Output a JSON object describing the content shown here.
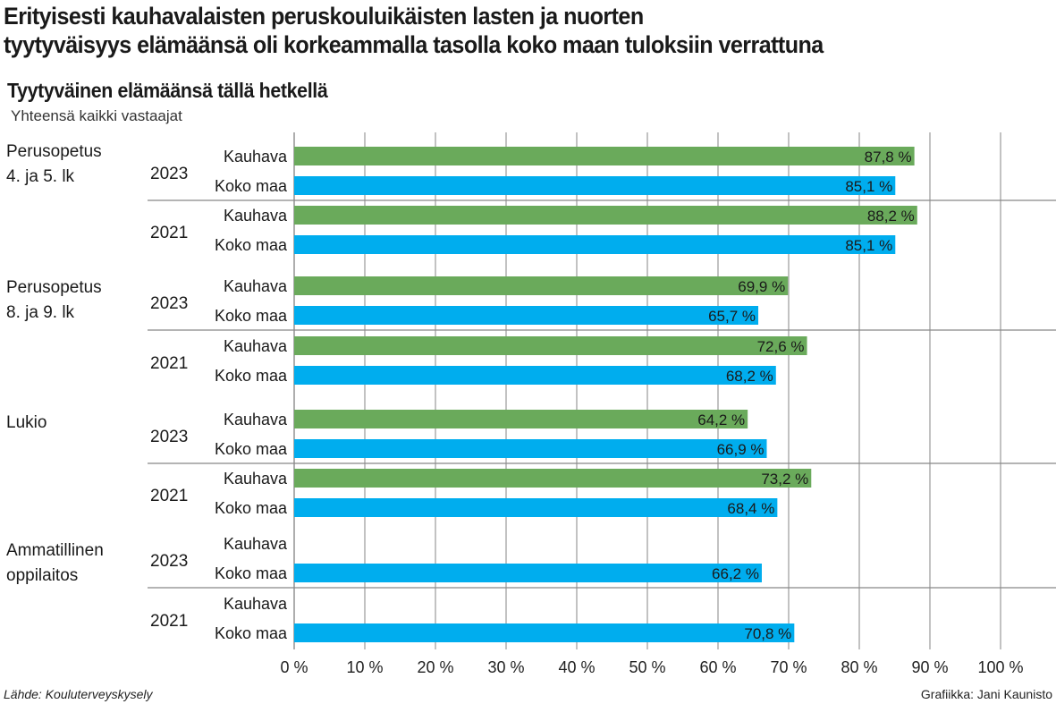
{
  "title": "Erityisesti kauhavalaisten peruskouluikäisten lasten ja nuorten tyytyväisyys elämäänsä oli korkeammalla tasolla koko maan tuloksiin verrattuna",
  "title_lines": [
    "Erityisesti kauhavalaisten peruskouluikäisten lasten ja nuorten",
    "tyytyväisyys elämäänsä oli korkeammalla tasolla koko maan tuloksiin verrattuna"
  ],
  "source": "Lähde: Kouluterveyskysely",
  "credit": "Grafiikka: Jani Kaunisto",
  "colors": {
    "Kauhava": "#6aaa5b",
    "Koko maa": "#00adee"
  },
  "chart_data": {
    "type": "bar",
    "orientation": "horizontal",
    "title": "Tyytyväinen elämäänsä tällä hetkellä",
    "subtitle": "Yhteensä kaikki vastaajat",
    "xlim": [
      0,
      100
    ],
    "x_ticks": [
      "0 %",
      "10 %",
      "20 %",
      "30 %",
      "40 %",
      "50 %",
      "60 %",
      "70 %",
      "80 %",
      "90 %",
      "100 %"
    ],
    "grid": true,
    "series_names": [
      "Kauhava",
      "Koko maa"
    ],
    "groups": [
      {
        "label": [
          "Perusopetus",
          "4. ja 5. lk"
        ],
        "years": [
          {
            "year": "2023",
            "values": [
              87.8,
              85.1
            ],
            "labels": [
              "87,8 %",
              "85,1 %"
            ]
          },
          {
            "year": "2021",
            "values": [
              88.2,
              85.1
            ],
            "labels": [
              "88,2 %",
              "85,1 %"
            ]
          }
        ]
      },
      {
        "label": [
          "Perusopetus",
          "8. ja 9. lk"
        ],
        "years": [
          {
            "year": "2023",
            "values": [
              69.9,
              65.7
            ],
            "labels": [
              "69,9 %",
              "65,7 %"
            ]
          },
          {
            "year": "2021",
            "values": [
              72.6,
              68.2
            ],
            "labels": [
              "72,6 %",
              "68,2 %"
            ]
          }
        ]
      },
      {
        "label": [
          "Lukio"
        ],
        "years": [
          {
            "year": "2023",
            "values": [
              64.2,
              66.9
            ],
            "labels": [
              "64,2 %",
              "66,9 %"
            ]
          },
          {
            "year": "2021",
            "values": [
              73.2,
              68.4
            ],
            "labels": [
              "73,2 %",
              "68,4 %"
            ]
          }
        ]
      },
      {
        "label": [
          "Ammatillinen",
          "oppilaitos"
        ],
        "years": [
          {
            "year": "2023",
            "values": [
              null,
              66.2
            ],
            "labels": [
              null,
              "66,2 %"
            ]
          },
          {
            "year": "2021",
            "values": [
              null,
              70.8
            ],
            "labels": [
              null,
              "70,8 %"
            ]
          }
        ]
      }
    ]
  }
}
